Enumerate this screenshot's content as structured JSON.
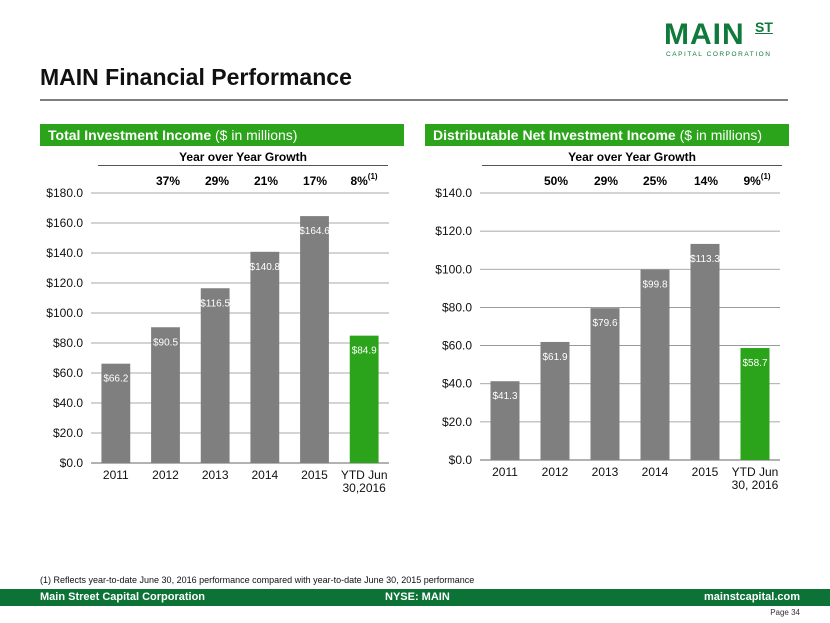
{
  "logo": {
    "word": "MAIN",
    "superscript": "ST",
    "subtitle": "CAPITAL CORPORATION"
  },
  "page_title": "MAIN Financial Performance",
  "colors": {
    "bar_gray": "#7f7f7f",
    "bar_green": "#2ba31a",
    "header_green": "#2ba31a",
    "footer_green": "#0c7236",
    "logo_green": "#0f7a3a"
  },
  "left_panel": {
    "header_bold": "Total Investment Income",
    "header_rest": " ($ in millions)",
    "yoy_title": "Year over Year Growth",
    "growth": [
      "37%",
      "29%",
      "21%",
      "17%",
      "8%"
    ],
    "growth_note": "(1)"
  },
  "right_panel": {
    "header_bold": "Distributable Net Investment Income",
    "header_rest": " ($ in millions)",
    "yoy_title": "Year over Year Growth",
    "growth": [
      "50%",
      "29%",
      "25%",
      "14%",
      "9%"
    ],
    "growth_note": "(1)"
  },
  "chart_data": [
    {
      "type": "bar",
      "title": "Total Investment Income ($ in millions)",
      "categories": [
        "2011",
        "2012",
        "2013",
        "2014",
        "2015",
        "YTD Jun 30,2016"
      ],
      "values": [
        66.2,
        90.5,
        116.5,
        140.8,
        164.6,
        84.9
      ],
      "data_labels": [
        "$66.2",
        "$90.5",
        "$116.5",
        "$140.8",
        "$164.6",
        "$84.9"
      ],
      "ylim": [
        0,
        180
      ],
      "yticks": [
        "$0.0",
        "$20.0",
        "$40.0",
        "$60.0",
        "$80.0",
        "$100.0",
        "$120.0",
        "$140.0",
        "$160.0",
        "$180.0"
      ],
      "grid": true,
      "highlight_last": true
    },
    {
      "type": "bar",
      "title": "Distributable Net Investment Income ($ in millions)",
      "categories": [
        "2011",
        "2012",
        "2013",
        "2014",
        "2015",
        "YTD Jun 30, 2016"
      ],
      "values": [
        41.3,
        61.9,
        79.6,
        99.8,
        113.3,
        58.7
      ],
      "data_labels": [
        "$41.3",
        "$61.9",
        "$79.6",
        "$99.8",
        "$113.3",
        "$58.7"
      ],
      "ylim": [
        0,
        140
      ],
      "yticks": [
        "$0.0",
        "$20.0",
        "$40.0",
        "$60.0",
        "$80.0",
        "$100.0",
        "$120.0",
        "$140.0"
      ],
      "grid": true,
      "highlight_last": true
    }
  ],
  "footnote": "(1) Reflects year-to-date June 30, 2016 performance compared with year-to-date June 30, 2015 performance",
  "footer": {
    "company": "Main Street Capital Corporation",
    "ticker": "NYSE: MAIN",
    "website": "mainstcapital.com"
  },
  "page_label": "Page  34"
}
